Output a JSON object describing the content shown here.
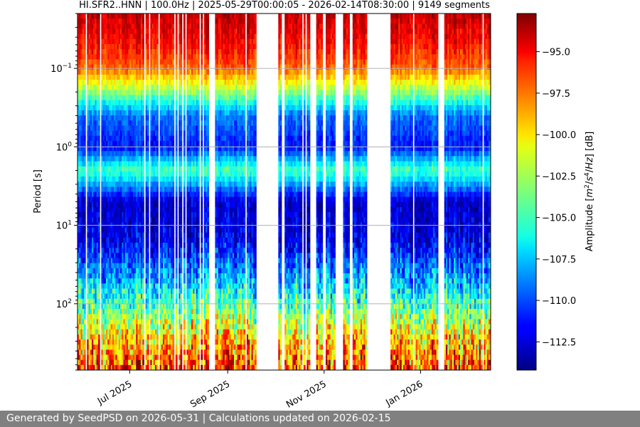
{
  "footer": {
    "text": "Generated by SeedPSD on 2026-05-31 | Calculations updated on 2026-02-15"
  },
  "colors": {
    "gap": "#ffffff",
    "grid": "#b0b0b0",
    "footer_bg": "#808080",
    "colormap": "jet"
  },
  "chart_data": {
    "type": "heatmap",
    "title": "HI.SFR2..HNN | 100.0Hz | 2025-05-29T00:00:05 - 2026-02-14T08:30:00 | 9149 segments",
    "xlabel": "",
    "ylabel": "Period [s]",
    "x_range": [
      "2025-05-29",
      "2026-02-14"
    ],
    "x_ticks": [
      {
        "date": "2025-07-01",
        "label": "Jul 2025"
      },
      {
        "date": "2025-09-01",
        "label": "Sep 2025"
      },
      {
        "date": "2025-11-01",
        "label": "Nov 2025"
      },
      {
        "date": "2026-01-01",
        "label": "Jan 2026"
      }
    ],
    "y_scale": "log",
    "y_inverted": true,
    "y_range": [
      0.02,
      700
    ],
    "y_ticks": [
      {
        "value": 0.1,
        "base": "10",
        "exp": "−1"
      },
      {
        "value": 1,
        "base": "10",
        "exp": "0"
      },
      {
        "value": 10,
        "base": "10",
        "exp": "1"
      },
      {
        "value": 100,
        "base": "10",
        "exp": "2"
      }
    ],
    "grid": true,
    "colorbar": {
      "label": "Amplitude [m²/s⁴/Hz] [dB]",
      "label_parts": [
        "Amplitude [",
        "m",
        "2",
        "/",
        "s",
        "4",
        "/",
        "Hz",
        "] [dB]"
      ],
      "cmap": "jet",
      "vmin": -114.2,
      "vmax": -92.7,
      "ticks": [
        -95.0,
        -97.5,
        -100.0,
        -102.5,
        -105.0,
        -107.5,
        -110.0,
        -112.5
      ]
    },
    "data_gaps": [
      [
        "2025-08-20",
        "2025-08-24"
      ],
      [
        "2025-09-19",
        "2025-10-03"
      ],
      [
        "2025-10-05",
        "2025-10-07"
      ],
      [
        "2025-10-24",
        "2025-10-27"
      ],
      [
        "2025-10-31",
        "2025-11-02"
      ],
      [
        "2025-11-08",
        "2025-11-13"
      ],
      [
        "2025-11-28",
        "2025-12-13"
      ],
      [
        "2026-01-12",
        "2026-01-16"
      ]
    ],
    "level_profile_db": [
      {
        "period": 0.02,
        "level": -94.0
      },
      {
        "period": 0.05,
        "level": -95.5
      },
      {
        "period": 0.1,
        "level": -97.5
      },
      {
        "period": 0.2,
        "level": -103.0
      },
      {
        "period": 0.4,
        "level": -109.0
      },
      {
        "period": 1.0,
        "level": -111.0
      },
      {
        "period": 2.0,
        "level": -104.5
      },
      {
        "period": 5.0,
        "level": -112.5
      },
      {
        "period": 15.0,
        "level": -112.0
      },
      {
        "period": 40.0,
        "level": -108.5
      },
      {
        "period": 100.0,
        "level": -104.5
      },
      {
        "period": 250.0,
        "level": -100.0
      },
      {
        "period": 700.0,
        "level": -96.5
      }
    ]
  }
}
